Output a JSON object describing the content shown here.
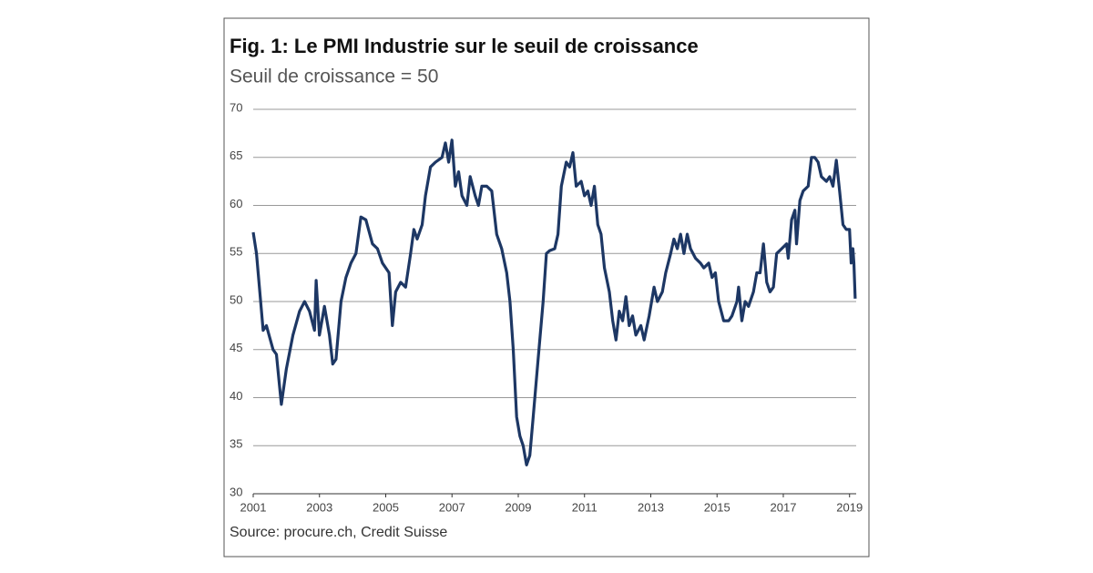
{
  "chart_data": {
    "type": "line",
    "title": "Fig. 1: Le PMI Industrie sur le seuil de croissance",
    "subtitle": "Seuil de croissance = 50",
    "source": "Source: procure.ch, Credit Suisse",
    "color": "#1d3764",
    "grid": true,
    "xlim": [
      2001,
      2019.2
    ],
    "xticks": [
      2001,
      2003,
      2005,
      2007,
      2009,
      2011,
      2013,
      2015,
      2017,
      2019
    ],
    "ylim": [
      30,
      70
    ],
    "yticks": [
      30,
      35,
      40,
      45,
      50,
      55,
      60,
      65,
      70
    ],
    "x": [
      2001.0,
      2001.1,
      2001.3,
      2001.4,
      2001.6,
      2001.7,
      2001.8,
      2001.85,
      2002.0,
      2002.2,
      2002.4,
      2002.55,
      2002.7,
      2002.85,
      2002.9,
      2003.0,
      2003.15,
      2003.3,
      2003.4,
      2003.5,
      2003.65,
      2003.8,
      2003.95,
      2004.1,
      2004.25,
      2004.4,
      2004.6,
      2004.75,
      2004.9,
      2005.1,
      2005.2,
      2005.3,
      2005.45,
      2005.6,
      2005.75,
      2005.85,
      2005.95,
      2006.1,
      2006.2,
      2006.35,
      2006.5,
      2006.7,
      2006.8,
      2006.9,
      2007.0,
      2007.1,
      2007.2,
      2007.3,
      2007.45,
      2007.55,
      2007.7,
      2007.8,
      2007.9,
      2008.05,
      2008.2,
      2008.35,
      2008.5,
      2008.65,
      2008.75,
      2008.85,
      2008.95,
      2009.05,
      2009.15,
      2009.25,
      2009.35,
      2009.45,
      2009.6,
      2009.75,
      2009.85,
      2009.95,
      2010.1,
      2010.2,
      2010.3,
      2010.45,
      2010.55,
      2010.65,
      2010.75,
      2010.9,
      2011.0,
      2011.1,
      2011.2,
      2011.3,
      2011.4,
      2011.5,
      2011.6,
      2011.75,
      2011.85,
      2011.95,
      2012.05,
      2012.15,
      2012.25,
      2012.35,
      2012.45,
      2012.55,
      2012.7,
      2012.8,
      2012.95,
      2013.1,
      2013.2,
      2013.35,
      2013.45,
      2013.6,
      2013.7,
      2013.8,
      2013.9,
      2014.0,
      2014.1,
      2014.2,
      2014.35,
      2014.5,
      2014.6,
      2014.75,
      2014.85,
      2014.95,
      2015.05,
      2015.2,
      2015.35,
      2015.45,
      2015.6,
      2015.65,
      2015.75,
      2015.85,
      2015.95,
      2016.1,
      2016.2,
      2016.3,
      2016.4,
      2016.5,
      2016.6,
      2016.7,
      2016.8,
      2016.95,
      2017.1,
      2017.15,
      2017.25,
      2017.35,
      2017.4,
      2017.5,
      2017.6,
      2017.75,
      2017.85,
      2017.95,
      2018.05,
      2018.15,
      2018.3,
      2018.4,
      2018.5,
      2018.6,
      2018.7,
      2018.8,
      2018.9,
      2019.0,
      2019.05,
      2019.1,
      2019.13,
      2019.17
    ],
    "values": [
      57.2,
      55,
      47,
      47.5,
      45,
      44.5,
      41,
      39.3,
      43,
      46.5,
      49,
      50,
      49,
      47,
      52.2,
      46.5,
      49.5,
      46.5,
      43.5,
      44,
      50,
      52.5,
      54,
      55,
      58.8,
      58.5,
      56,
      55.5,
      54,
      53,
      47.5,
      51,
      52,
      51.5,
      55,
      57.5,
      56.5,
      58,
      61,
      64,
      64.5,
      65,
      66.5,
      64.5,
      66.8,
      62,
      63.5,
      61,
      60,
      63,
      61,
      60,
      62,
      62,
      61.5,
      57,
      55.5,
      53,
      50,
      45,
      38,
      36,
      35,
      33,
      34,
      38,
      44,
      50,
      55,
      55.3,
      55.5,
      57,
      62,
      64.5,
      64,
      65.5,
      62,
      62.5,
      61,
      61.5,
      60,
      62,
      58,
      57,
      53.5,
      51,
      48,
      46,
      49,
      48,
      50.5,
      47.5,
      48.5,
      46.5,
      47.5,
      46,
      48.5,
      51.5,
      50,
      51,
      53,
      55,
      56.5,
      55.5,
      57,
      55,
      57,
      55.5,
      54.5,
      54,
      53.5,
      54,
      52.5,
      53,
      50,
      48,
      48,
      48.5,
      50,
      51.5,
      48,
      50,
      49.5,
      51,
      53,
      53,
      56,
      52,
      51,
      51.5,
      55,
      55.5,
      56,
      54.5,
      58.5,
      59.5,
      56,
      60.5,
      61.5,
      62,
      65,
      65,
      64.5,
      63,
      62.5,
      63,
      62,
      64.7,
      61.5,
      58,
      57.5,
      57.5,
      54,
      55.5,
      54,
      50.3
    ]
  }
}
